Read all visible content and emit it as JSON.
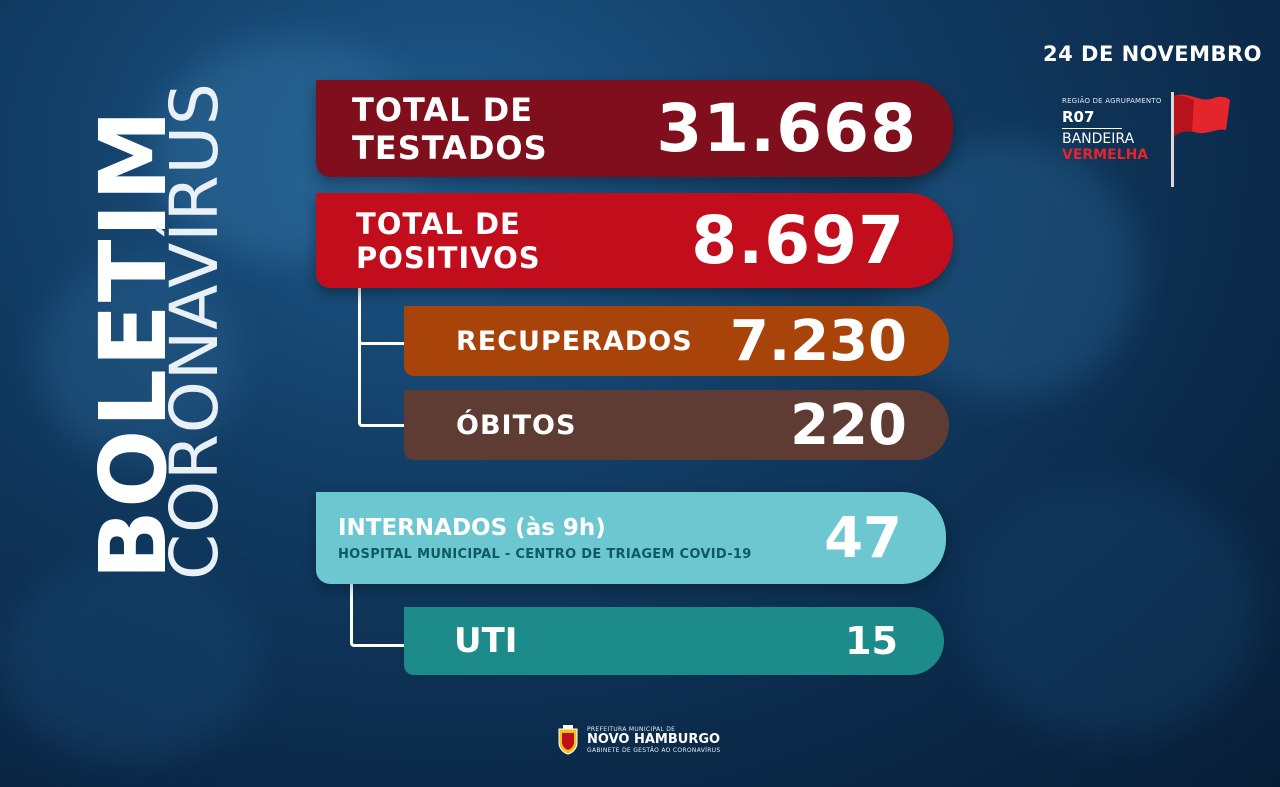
{
  "header": {
    "date": "24 DE NOVEMBRO"
  },
  "title": {
    "line1": "BOLETIM",
    "line2": "CORONAVÍRUS"
  },
  "region": {
    "small_label": "REGIÃO DE AGRUPAMENTO",
    "code": "R07",
    "band_label": "BANDEIRA",
    "band_color_label": "VERMELHA",
    "flag_color": "#e5252c",
    "icon": "red-flag-icon"
  },
  "stats": {
    "testados": {
      "label": "TOTAL DE TESTADOS",
      "value": "31.668",
      "color": "#7f0f1c"
    },
    "positivos": {
      "label": "TOTAL DE POSITIVOS",
      "value": "8.697",
      "color": "#c10d1c"
    },
    "recuperados": {
      "label": "RECUPERADOS",
      "value": "7.230",
      "color": "#a8430a"
    },
    "obitos": {
      "label": "ÓBITOS",
      "value": "220",
      "color": "#5e3c34"
    },
    "internados": {
      "label": "INTERNADOS (às 9h)",
      "sublabel": "HOSPITAL MUNICIPAL - CENTRO DE TRIAGEM COVID-19",
      "value": "47",
      "color": "#6cc7d1"
    },
    "uti": {
      "label": "UTI",
      "value": "15",
      "color": "#1e8b8b"
    }
  },
  "footer": {
    "line1": "PREFEITURA MUNICIPAL DE",
    "line2": "NOVO HAMBURGO",
    "line3": "GABINETE DE GESTÃO AO CORONAVÍRUS",
    "icon": "city-crest-icon"
  }
}
